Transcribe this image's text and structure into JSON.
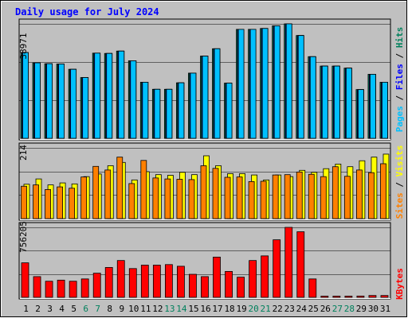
{
  "title": "Daily usage for July 2024",
  "days": [
    "1",
    "2",
    "3",
    "4",
    "5",
    "6",
    "7",
    "8",
    "9",
    "10",
    "11",
    "12",
    "13",
    "14",
    "15",
    "16",
    "17",
    "18",
    "19",
    "20",
    "21",
    "22",
    "23",
    "24",
    "25",
    "26",
    "27",
    "28",
    "29",
    "30",
    "31"
  ],
  "weekend_days": [
    "6",
    "7",
    "13",
    "14",
    "20",
    "21",
    "27",
    "28"
  ],
  "colors": {
    "hits": "#00805c",
    "files": "#0000ff",
    "pages": "#00c0ff",
    "visits": "#ffff00",
    "sites": "#ff8000",
    "kbytes": "#ff0000",
    "weekday_label": "#000000",
    "weekend_label": "#00805c",
    "title": "#0000ff",
    "panel_bg": "#c0c0c0"
  },
  "chart_data": [
    {
      "type": "bar",
      "panel": "top",
      "ytick_label": "38971",
      "ylim": [
        0,
        38971
      ],
      "ylabel_parts": [
        "Pages",
        " / ",
        "Files",
        " / ",
        "Hits"
      ],
      "series": [
        {
          "name": "Hits",
          "values": [
            29200,
            25700,
            25400,
            25300,
            23500,
            20700,
            29000,
            28900,
            29700,
            26400,
            19100,
            16700,
            16700,
            18900,
            22200,
            28000,
            30500,
            18800,
            37100,
            37100,
            37400,
            38300,
            38971,
            35000,
            27800,
            24600,
            24600,
            23900,
            16600,
            21800,
            19100
          ]
        },
        {
          "name": "Files",
          "values": [
            29200,
            25700,
            25400,
            25300,
            23500,
            20700,
            29000,
            28900,
            29700,
            26400,
            19100,
            16700,
            16700,
            18900,
            22200,
            28000,
            30500,
            18800,
            37100,
            37100,
            37400,
            38300,
            38971,
            35000,
            27800,
            24600,
            24600,
            23900,
            16600,
            21800,
            19100
          ]
        },
        {
          "name": "Pages",
          "values": [
            29200,
            25700,
            25400,
            25300,
            23500,
            20700,
            29000,
            28900,
            29700,
            26400,
            19100,
            16700,
            16700,
            18900,
            22200,
            28000,
            30500,
            18800,
            37100,
            37100,
            37400,
            38300,
            38971,
            35000,
            27800,
            24600,
            24600,
            23900,
            16600,
            21800,
            19100
          ]
        }
      ]
    },
    {
      "type": "bar",
      "panel": "middle",
      "ytick_label": "214",
      "ylim": [
        0,
        214
      ],
      "ylabel_parts": [
        "Sites",
        " / ",
        "Visits"
      ],
      "series": [
        {
          "name": "Visits",
          "values": [
            104,
            120,
            102,
            108,
            105,
            127,
            135,
            160,
            170,
            117,
            142,
            133,
            131,
            140,
            133,
            190,
            160,
            136,
            136,
            132,
            117,
            132,
            127,
            146,
            140,
            151,
            165,
            157,
            175,
            186,
            195
          ]
        },
        {
          "name": "Sites",
          "values": [
            98,
            102,
            88,
            96,
            92,
            126,
            158,
            147,
            186,
            106,
            176,
            123,
            120,
            119,
            118,
            160,
            152,
            125,
            126,
            112,
            113,
            132,
            133,
            141,
            134,
            127,
            157,
            128,
            147,
            139,
            166
          ]
        }
      ]
    },
    {
      "type": "bar",
      "panel": "bottom",
      "ytick_label": "756205",
      "ylim": [
        0,
        756205
      ],
      "ylabel_parts": [
        "KBytes"
      ],
      "series": [
        {
          "name": "KBytes",
          "values": [
            373000,
            224000,
            174000,
            186000,
            174000,
            199000,
            261000,
            323000,
            398000,
            311000,
            348000,
            348000,
            354000,
            336000,
            249000,
            224000,
            435000,
            280000,
            218000,
            398000,
            448000,
            622000,
            756205,
            709000,
            199000,
            10000,
            10000,
            10000,
            14000,
            20000,
            20000
          ]
        }
      ]
    }
  ]
}
